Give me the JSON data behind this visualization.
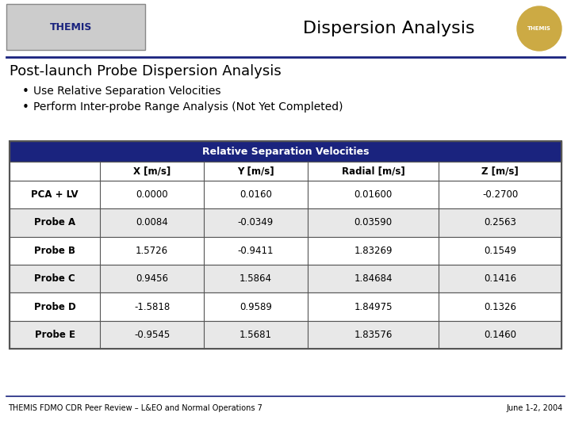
{
  "title_header": "Dispersion Analysis",
  "slide_title": "Post-launch Probe Dispersion Analysis",
  "bullets": [
    "Use Relative Separation Velocities",
    "Perform Inter-probe Range Analysis (Not Yet Completed)"
  ],
  "table_title": "Relative Separation Velocities",
  "table_header_bg": "#1a237e",
  "table_header_color": "#ffffff",
  "table_col_headers": [
    "",
    "X [m/s]",
    "Y [m/s]",
    "Radial [m/s]",
    "Z [m/s]"
  ],
  "table_rows": [
    [
      "PCA + LV",
      "0.0000",
      "0.0160",
      "0.01600",
      "-0.2700"
    ],
    [
      "Probe A",
      "0.0084",
      "-0.0349",
      "0.03590",
      "0.2563"
    ],
    [
      "Probe B",
      "1.5726",
      "-0.9411",
      "1.83269",
      "0.1549"
    ],
    [
      "Probe C",
      "0.9456",
      "1.5864",
      "1.84684",
      "0.1416"
    ],
    [
      "Probe D",
      "-1.5818",
      "0.9589",
      "1.84975",
      "0.1326"
    ],
    [
      "Probe E",
      "-0.9545",
      "1.5681",
      "1.83576",
      "0.1460"
    ]
  ],
  "footer_left": "THEMIS FDMO CDR Peer Review – L&EO and Normal Operations 7",
  "footer_right": "June 1-2, 2004",
  "bg_color": "#ffffff",
  "header_line_color": "#1a237e",
  "footer_line_color": "#1a237e",
  "slide_title_color": "#000000",
  "bullet_color": "#000000",
  "table_row_even_bg": "#e8e8e8",
  "table_row_odd_bg": "#ffffff",
  "table_border_color": "#555555",
  "col_header_color": "#000000"
}
